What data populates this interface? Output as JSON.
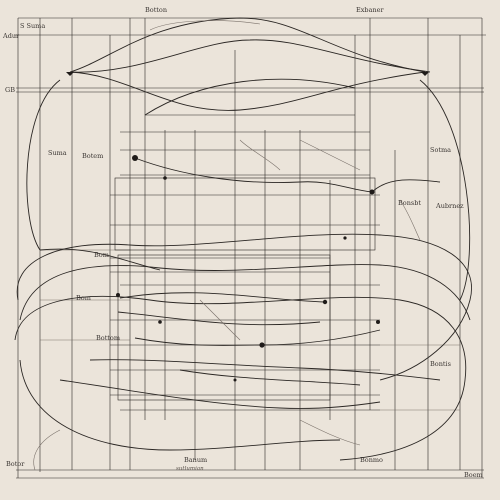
{
  "labels": {
    "top_left": "Botton",
    "top_right": "Exbaner",
    "bottom_left": "Banum",
    "bottom_right": "Bonmo",
    "left_1": "S Suma",
    "left_2": "Adur",
    "left_3": "GB",
    "left_4": "Suma",
    "left_5": "Botem",
    "left_6": "Bom",
    "left_7": "Bom",
    "left_8": "Bottom",
    "left_9": "Botor",
    "right_1": "Sotma",
    "right_2": "Bonsbt",
    "right_3": "Aubrnez",
    "right_4": "Bontis",
    "right_5": "Boem",
    "bottom_note": "sutlumian"
  },
  "colors": {
    "ink": "#2b2724",
    "paper": "#ebe4da"
  }
}
